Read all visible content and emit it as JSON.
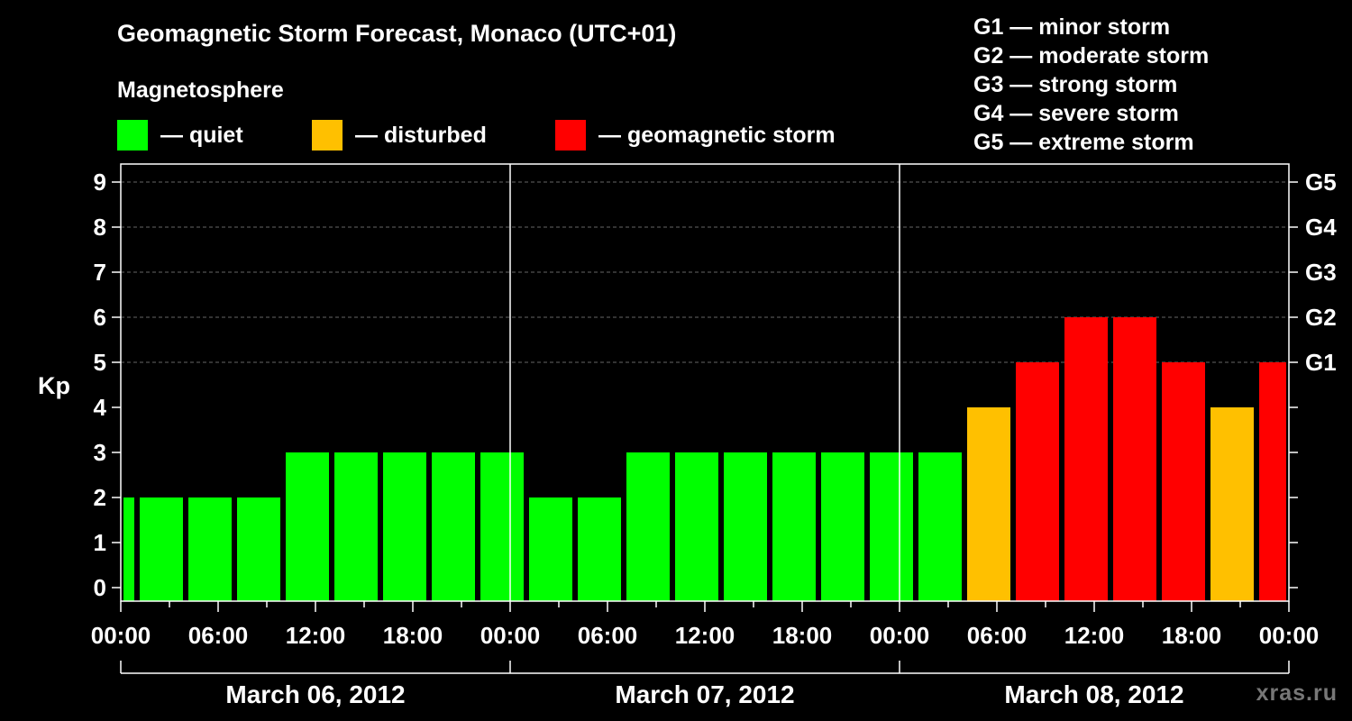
{
  "title": "Geomagnetic Storm Forecast, Monaco (UTC+01)",
  "legend": {
    "heading": "Magnetosphere",
    "items": [
      {
        "label": "— quiet",
        "color": "#00ff00"
      },
      {
        "label": "— disturbed",
        "color": "#ffc000"
      },
      {
        "label": "— geomagnetic storm",
        "color": "#ff0000"
      }
    ]
  },
  "storm_scale": [
    "G1 — minor storm",
    "G2 — moderate storm",
    "G3 — strong storm",
    "G4 — severe storm",
    "G5 — extreme storm"
  ],
  "watermark": "xras.ru",
  "chart_data": {
    "type": "bar",
    "ylabel": "Kp",
    "ylim": [
      0,
      9
    ],
    "y_ticks": [
      0,
      1,
      2,
      3,
      4,
      5,
      6,
      7,
      8,
      9
    ],
    "right_axis_labels": [
      {
        "kp": 5,
        "label": "G1"
      },
      {
        "kp": 6,
        "label": "G2"
      },
      {
        "kp": 7,
        "label": "G3"
      },
      {
        "kp": 8,
        "label": "G4"
      },
      {
        "kp": 9,
        "label": "G5"
      }
    ],
    "grid": "horizontal dashed",
    "x_hours_range": [
      0,
      72
    ],
    "x_tick_labels": [
      "00:00",
      "06:00",
      "12:00",
      "18:00",
      "00:00",
      "06:00",
      "12:00",
      "18:00",
      "00:00",
      "06:00",
      "12:00",
      "18:00",
      "00:00"
    ],
    "dates": [
      "March 06, 2012",
      "March 07, 2012",
      "March 08, 2012"
    ],
    "bars": [
      {
        "start_hour": 0,
        "end_hour": 1,
        "kp": 2,
        "level": "quiet"
      },
      {
        "start_hour": 1,
        "end_hour": 4,
        "kp": 2,
        "level": "quiet"
      },
      {
        "start_hour": 4,
        "end_hour": 7,
        "kp": 2,
        "level": "quiet"
      },
      {
        "start_hour": 7,
        "end_hour": 10,
        "kp": 2,
        "level": "quiet"
      },
      {
        "start_hour": 10,
        "end_hour": 13,
        "kp": 3,
        "level": "quiet"
      },
      {
        "start_hour": 13,
        "end_hour": 16,
        "kp": 3,
        "level": "quiet"
      },
      {
        "start_hour": 16,
        "end_hour": 19,
        "kp": 3,
        "level": "quiet"
      },
      {
        "start_hour": 19,
        "end_hour": 22,
        "kp": 3,
        "level": "quiet"
      },
      {
        "start_hour": 22,
        "end_hour": 25,
        "kp": 3,
        "level": "quiet"
      },
      {
        "start_hour": 25,
        "end_hour": 28,
        "kp": 2,
        "level": "quiet"
      },
      {
        "start_hour": 28,
        "end_hour": 31,
        "kp": 2,
        "level": "quiet"
      },
      {
        "start_hour": 31,
        "end_hour": 34,
        "kp": 3,
        "level": "quiet"
      },
      {
        "start_hour": 34,
        "end_hour": 37,
        "kp": 3,
        "level": "quiet"
      },
      {
        "start_hour": 37,
        "end_hour": 40,
        "kp": 3,
        "level": "quiet"
      },
      {
        "start_hour": 40,
        "end_hour": 43,
        "kp": 3,
        "level": "quiet"
      },
      {
        "start_hour": 43,
        "end_hour": 46,
        "kp": 3,
        "level": "quiet"
      },
      {
        "start_hour": 46,
        "end_hour": 49,
        "kp": 3,
        "level": "quiet"
      },
      {
        "start_hour": 49,
        "end_hour": 52,
        "kp": 3,
        "level": "quiet"
      },
      {
        "start_hour": 52,
        "end_hour": 55,
        "kp": 4,
        "level": "disturbed"
      },
      {
        "start_hour": 55,
        "end_hour": 58,
        "kp": 5,
        "level": "storm"
      },
      {
        "start_hour": 58,
        "end_hour": 61,
        "kp": 6,
        "level": "storm"
      },
      {
        "start_hour": 61,
        "end_hour": 64,
        "kp": 6,
        "level": "storm"
      },
      {
        "start_hour": 64,
        "end_hour": 67,
        "kp": 5,
        "level": "storm"
      },
      {
        "start_hour": 67,
        "end_hour": 70,
        "kp": 4,
        "level": "disturbed"
      },
      {
        "start_hour": 70,
        "end_hour": 72,
        "kp": 5,
        "level": "storm"
      }
    ],
    "colors": {
      "quiet": "#00ff00",
      "disturbed": "#ffc000",
      "storm": "#ff0000"
    }
  }
}
